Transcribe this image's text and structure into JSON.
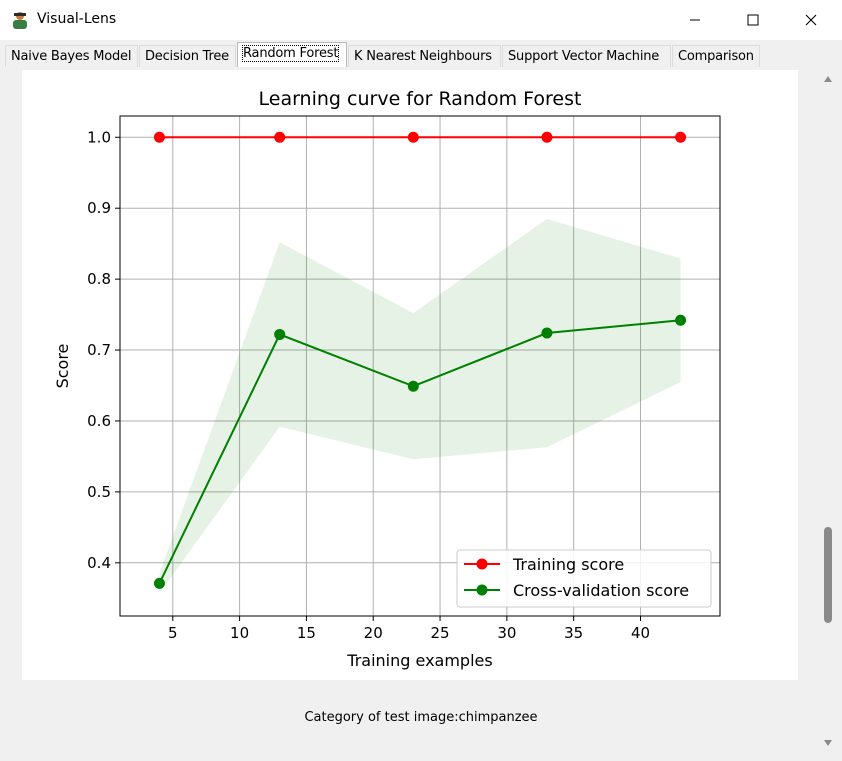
{
  "window": {
    "title": "Visual-Lens",
    "minimize_icon": "minimize-icon",
    "maximize_icon": "maximize-icon",
    "close_icon": "close-icon"
  },
  "tabs": [
    {
      "label": "Naive Bayes Model",
      "active": false
    },
    {
      "label": "Decision Tree",
      "active": false
    },
    {
      "label": "Random Forest",
      "active": true
    },
    {
      "label": "K Nearest Neighbours",
      "active": false
    },
    {
      "label": "Support Vector Machine",
      "active": false
    },
    {
      "label": "Comparison",
      "active": false
    }
  ],
  "caption": "Category of test image:chimpanzee",
  "chart_data": {
    "type": "line",
    "title": "Learning curve for Random Forest",
    "xlabel": "Training examples",
    "ylabel": "Score",
    "xlim": [
      1.05,
      45.95
    ],
    "ylim": [
      0.325,
      1.03
    ],
    "xticks": [
      5,
      10,
      15,
      20,
      25,
      30,
      35,
      40
    ],
    "yticks": [
      0.4,
      0.5,
      0.6,
      0.7,
      0.8,
      0.9,
      1.0
    ],
    "grid": true,
    "legend_position": "lower right",
    "x": [
      4,
      13,
      23,
      33,
      43
    ],
    "series": [
      {
        "name": "Training score",
        "color": "#ff0000",
        "values": [
          1.0,
          1.0,
          1.0,
          1.0,
          1.0
        ],
        "band_lower": [
          1.0,
          1.0,
          1.0,
          1.0,
          1.0
        ],
        "band_upper": [
          1.0,
          1.0,
          1.0,
          1.0,
          1.0
        ]
      },
      {
        "name": "Cross-validation score",
        "color": "#008000",
        "values": [
          0.371,
          0.722,
          0.649,
          0.724,
          0.742
        ],
        "band_lower": [
          0.357,
          0.592,
          0.546,
          0.563,
          0.655
        ],
        "band_upper": [
          0.385,
          0.852,
          0.752,
          0.885,
          0.829
        ]
      }
    ]
  }
}
